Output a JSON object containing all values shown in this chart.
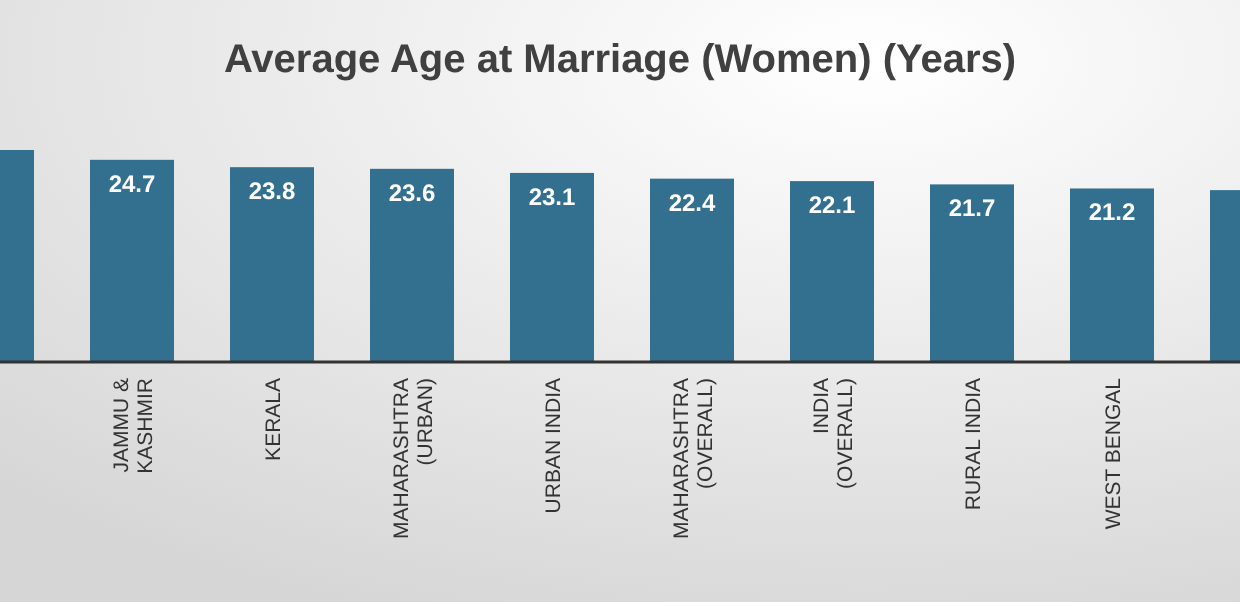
{
  "chart_data": {
    "type": "bar",
    "title": "Average Age at Marriage (Women) (Years)",
    "categories": [
      null,
      "JAMMU & KASHMIR",
      "KERALA",
      "MAHARASHTRA (URBAN)",
      "URBAN INDIA",
      "MAHARASHTRA (OVERALL)",
      "INDIA (OVERALL)",
      "RURAL INDIA",
      "WEST BENGAL",
      null
    ],
    "values": [
      25.9,
      24.7,
      23.8,
      23.6,
      23.1,
      22.4,
      22.1,
      21.7,
      21.2,
      21.0
    ],
    "value_labels": [
      null,
      "24.7",
      "23.8",
      "23.6",
      "23.1",
      "22.4",
      "22.1",
      "21.7",
      "21.2",
      null
    ],
    "color": "#33708f"
  }
}
